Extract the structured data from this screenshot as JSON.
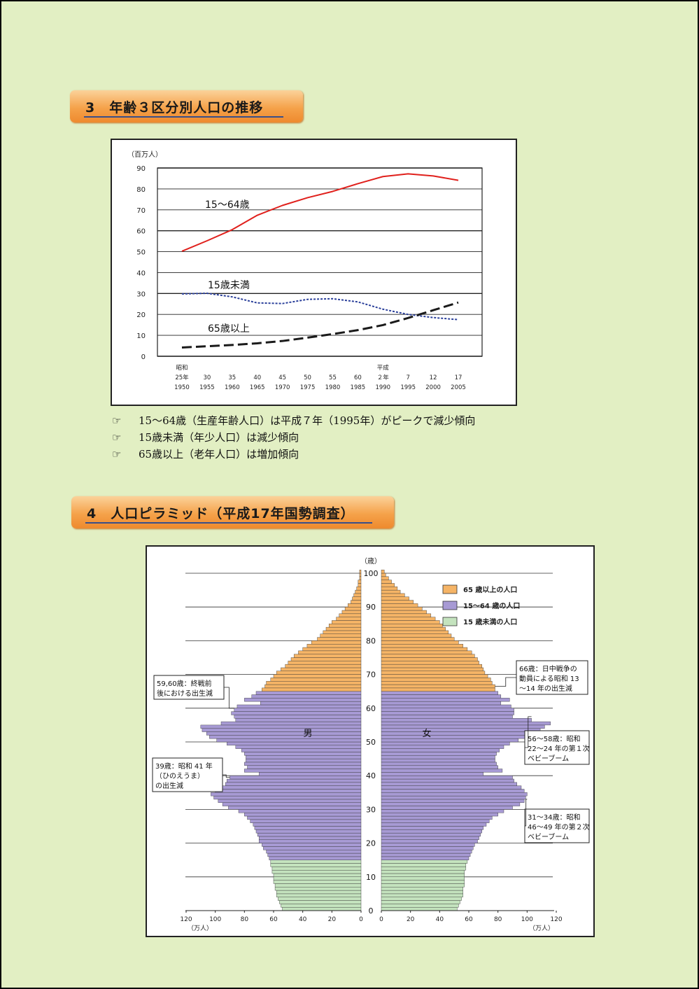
{
  "section3": {
    "title": "3　年齢３区分別人口の推移"
  },
  "section4": {
    "title": "4　人口ピラミッド（平成17年国勢調査）"
  },
  "notes": [
    {
      "icon": "pointing-hand-icon",
      "text": "15～64歳（生産年齢人口）は平成７年（1995年）がピークで減少傾向"
    },
    {
      "icon": "pointing-hand-icon",
      "text": "15歳未満（年少人口）は減少傾向"
    },
    {
      "icon": "pointing-hand-icon",
      "text": "65歳以上（老年人口）は増加傾向"
    }
  ],
  "note_mark": "☞",
  "chart_data": [
    {
      "type": "line",
      "ylabel": "（百万人）",
      "ylim": [
        0,
        90
      ],
      "yticks": [
        0,
        10,
        20,
        30,
        40,
        50,
        60,
        70,
        80,
        90
      ],
      "x": [
        1950,
        1955,
        1960,
        1965,
        1970,
        1975,
        1980,
        1985,
        1990,
        1995,
        2000,
        2005
      ],
      "xtick_labels": [
        [
          "昭和",
          "25年",
          "1950"
        ],
        [
          "",
          "30",
          "1955"
        ],
        [
          "",
          "35",
          "1960"
        ],
        [
          "",
          "40",
          "1965"
        ],
        [
          "",
          "45",
          "1970"
        ],
        [
          "",
          "50",
          "1975"
        ],
        [
          "",
          "55",
          "1980"
        ],
        [
          "",
          "60",
          "1985"
        ],
        [
          "平成",
          "２年",
          "1990"
        ],
        [
          "",
          "7",
          "1995"
        ],
        [
          "",
          "12",
          "2000"
        ],
        [
          "",
          "17",
          "2005"
        ]
      ],
      "series": [
        {
          "name": "15～64歳",
          "color": "#e0201c",
          "dash": "solid",
          "values": [
            50.2,
            55.2,
            60.5,
            67.4,
            72.1,
            75.8,
            78.8,
            82.5,
            85.9,
            87.2,
            86.2,
            84.1
          ]
        },
        {
          "name": "15歳未満",
          "color": "#2a3f9a",
          "dash": "dotted",
          "values": [
            29.8,
            30.1,
            28.4,
            25.5,
            25.2,
            27.2,
            27.5,
            26.0,
            22.5,
            20.0,
            18.5,
            17.5
          ]
        },
        {
          "name": "65歳以上",
          "color": "#1a1a1a",
          "dash": "dashed",
          "values": [
            4.2,
            4.8,
            5.4,
            6.2,
            7.3,
            8.9,
            10.6,
            12.5,
            14.9,
            18.3,
            22.0,
            25.7
          ]
        }
      ]
    },
    {
      "type": "bar",
      "subtype": "population-pyramid",
      "ylabel": "（歳）",
      "xlabel": "（万人）",
      "ages": [
        0,
        100
      ],
      "yticks": [
        0,
        10,
        20,
        30,
        40,
        50,
        60,
        70,
        80,
        90,
        100
      ],
      "xticks": [
        120,
        100,
        80,
        60,
        40,
        20,
        0
      ],
      "xlim": [
        0,
        120
      ],
      "male_label": "男",
      "female_label": "女",
      "legend": [
        {
          "name": "65 歳以上の人口",
          "color": "#f5b466"
        },
        {
          "name": "15～64 歳の人口",
          "color": "#a79ad4"
        },
        {
          "name": "15 歳未満の人口",
          "color": "#c4e3be"
        }
      ],
      "male": [
        54,
        55,
        56,
        57,
        58,
        58,
        59,
        59,
        60,
        60,
        60,
        61,
        61,
        62,
        62,
        63,
        64,
        65,
        67,
        68,
        70,
        70,
        71,
        72,
        73,
        74,
        76,
        78,
        80,
        84,
        91,
        95,
        98,
        101,
        103,
        100,
        96,
        93,
        92,
        90,
        70,
        80,
        78,
        80,
        79,
        79,
        80,
        82,
        86,
        92,
        99,
        104,
        106,
        109,
        110,
        96,
        86,
        87,
        89,
        87,
        85,
        69,
        80,
        75,
        72,
        68,
        66,
        65,
        62,
        60,
        58,
        55,
        52,
        50,
        48,
        46,
        43,
        40,
        37,
        34,
        30,
        28,
        26,
        24,
        22,
        20,
        17,
        15,
        13,
        11,
        9,
        7,
        6,
        5,
        4,
        3,
        2,
        2,
        1,
        1,
        1
      ],
      "female": [
        52,
        53,
        54,
        55,
        56,
        56,
        56,
        57,
        57,
        57,
        57,
        57,
        58,
        58,
        59,
        60,
        61,
        62,
        63,
        64,
        66,
        67,
        68,
        69,
        70,
        72,
        74,
        76,
        80,
        84,
        90,
        95,
        98,
        99,
        100,
        98,
        96,
        93,
        91,
        90,
        70,
        83,
        80,
        79,
        78,
        78,
        79,
        81,
        84,
        88,
        94,
        100,
        106,
        109,
        112,
        116,
        103,
        90,
        91,
        91,
        89,
        82,
        88,
        82,
        80,
        78,
        78,
        76,
        75,
        73,
        71,
        70,
        69,
        67,
        66,
        64,
        62,
        59,
        56,
        53,
        50,
        48,
        46,
        44,
        42,
        40,
        37,
        34,
        31,
        28,
        25,
        22,
        19,
        16,
        13,
        11,
        9,
        7,
        5,
        3,
        2
      ],
      "annotations": [
        {
          "side": "male",
          "ages": [
            59,
            60
          ],
          "text": [
            "59,60歳：終戦前",
            "後における出生減"
          ]
        },
        {
          "side": "male",
          "ages": [
            39
          ],
          "text": [
            "39歳：昭和 41 年",
            "（ひのえうま）",
            "の出生減"
          ]
        },
        {
          "side": "female",
          "ages": [
            66
          ],
          "text": [
            "66歳：日中戦争の",
            "動員による昭和 13",
            "～14 年の出生減"
          ]
        },
        {
          "side": "female",
          "ages": [
            56,
            58
          ],
          "text": [
            "56～58歳：昭和",
            "22～24 年の第１次",
            "ベビーブーム"
          ]
        },
        {
          "side": "female",
          "ages": [
            31,
            34
          ],
          "text": [
            "31～34歳：昭和",
            "46～49 年の第２次",
            "ベビーブーム"
          ]
        }
      ]
    }
  ]
}
